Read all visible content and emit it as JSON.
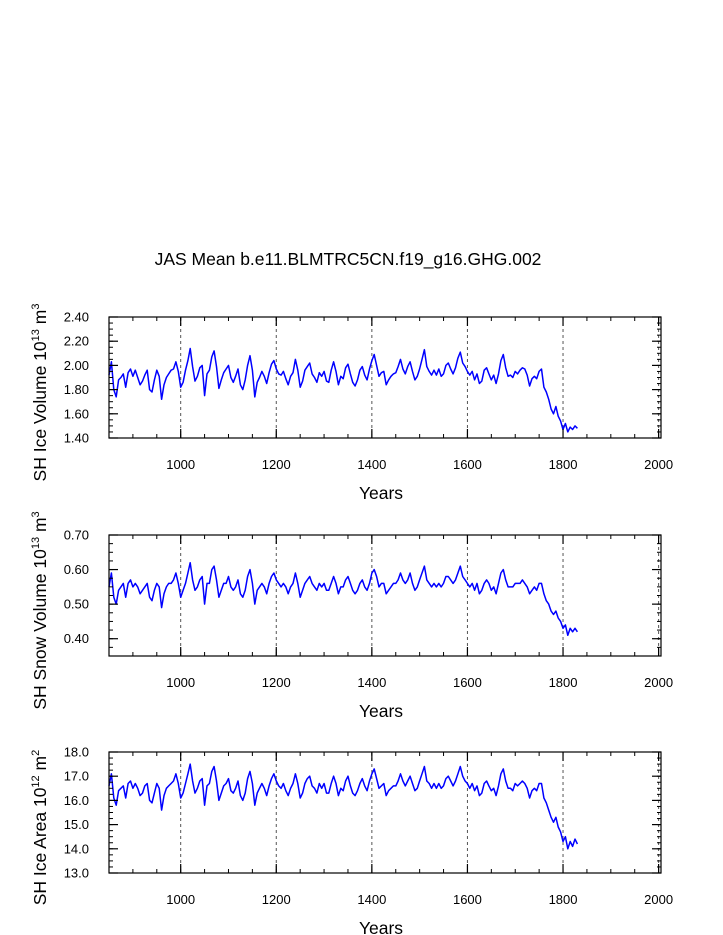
{
  "title": "JAS Mean b.e11.BLMTRC5CN.f19_g16.GHG.002",
  "chart_data": [
    {
      "type": "line",
      "id": "ice-volume",
      "ylabel": "SH Ice Volume 10",
      "ylabel_exp": "13",
      "ylabel_unit": "m",
      "ylabel_unit_exp": "3",
      "xlabel": "Years",
      "xlim": [
        850,
        2005
      ],
      "ylim": [
        1.4,
        2.4
      ],
      "xticks": [
        1000,
        1200,
        1400,
        1600,
        1800,
        2000
      ],
      "xtick_labels": [
        "1000",
        "1200",
        "1400",
        "1600",
        "1800",
        "2000"
      ],
      "yticks": [
        1.4,
        1.6,
        1.8,
        2.0,
        2.2,
        2.4
      ],
      "ytick_labels": [
        "1.40",
        "1.60",
        "1.80",
        "2.00",
        "2.20",
        "2.40"
      ],
      "grid_x": [
        1000,
        1200,
        1400,
        1600,
        1800,
        2000
      ],
      "series": [
        {
          "name": "SH Ice Volume",
          "color": "#0000ff",
          "x_start": 850,
          "x_step": 5,
          "values": [
            1.92,
            2.03,
            1.8,
            1.74,
            1.88,
            1.9,
            1.93,
            1.82,
            1.94,
            1.97,
            1.91,
            1.96,
            1.9,
            1.84,
            1.87,
            1.92,
            1.96,
            1.8,
            1.78,
            1.88,
            1.96,
            1.91,
            1.72,
            1.84,
            1.9,
            1.93,
            1.96,
            1.97,
            2.03,
            1.95,
            1.82,
            1.86,
            1.96,
            2.04,
            2.14,
            1.99,
            1.87,
            1.91,
            1.98,
            2.0,
            1.75,
            1.93,
            1.96,
            2.07,
            2.12,
            1.99,
            1.81,
            1.88,
            1.94,
            1.97,
            2.0,
            1.9,
            1.86,
            1.91,
            1.97,
            1.84,
            1.8,
            1.88,
            2.0,
            2.08,
            1.96,
            1.74,
            1.86,
            1.9,
            1.95,
            1.91,
            1.85,
            1.94,
            2.01,
            2.04,
            1.97,
            1.93,
            1.92,
            1.95,
            1.89,
            1.84,
            1.91,
            1.94,
            2.05,
            1.96,
            1.82,
            1.87,
            1.96,
            1.99,
            2.02,
            1.93,
            1.9,
            1.86,
            1.94,
            1.91,
            1.95,
            1.87,
            1.86,
            1.96,
            2.03,
            1.95,
            1.84,
            1.91,
            1.89,
            1.98,
            2.01,
            1.93,
            1.86,
            1.83,
            1.88,
            1.96,
            1.99,
            1.92,
            1.88,
            1.97,
            2.04,
            2.09,
            2.0,
            1.91,
            1.94,
            1.95,
            1.84,
            1.88,
            1.91,
            1.93,
            1.94,
            1.99,
            2.05,
            1.97,
            1.93,
            1.99,
            2.03,
            1.95,
            1.88,
            1.91,
            1.97,
            2.05,
            2.13,
            1.99,
            1.95,
            1.92,
            1.96,
            1.92,
            1.97,
            1.91,
            1.93,
            2.0,
            2.02,
            1.97,
            1.93,
            1.98,
            2.06,
            2.11,
            2.02,
            1.99,
            1.95,
            1.92,
            1.95,
            1.88,
            1.93,
            1.85,
            1.87,
            1.96,
            1.98,
            1.93,
            1.88,
            1.92,
            1.85,
            1.93,
            2.04,
            2.09,
            1.98,
            1.91,
            1.92,
            1.9,
            1.95,
            1.93,
            1.96,
            1.98,
            1.97,
            1.92,
            1.83,
            1.89,
            1.91,
            1.89,
            1.95,
            1.97,
            1.82,
            1.78,
            1.72,
            1.64,
            1.6,
            1.66,
            1.58,
            1.54,
            1.47,
            1.52,
            1.45,
            1.49,
            1.47,
            1.5,
            1.48
          ]
        }
      ]
    },
    {
      "type": "line",
      "id": "snow-volume",
      "ylabel": "SH Snow Volume 10",
      "ylabel_exp": "13",
      "ylabel_unit": "m",
      "ylabel_unit_exp": "3",
      "xlabel": "Years",
      "xlim": [
        850,
        2005
      ],
      "ylim": [
        0.35,
        0.7
      ],
      "xticks": [
        1000,
        1200,
        1400,
        1600,
        1800,
        2000
      ],
      "xtick_labels": [
        "1000",
        "1200",
        "1400",
        "1600",
        "1800",
        "2000"
      ],
      "yticks": [
        0.4,
        0.5,
        0.6,
        0.7
      ],
      "ytick_labels": [
        "0.40",
        "0.50",
        "0.60",
        "0.70"
      ],
      "grid_x": [
        1000,
        1200,
        1400,
        1600,
        1800,
        2000
      ],
      "series": [
        {
          "name": "SH Snow Volume",
          "color": "#0000ff",
          "x_start": 850,
          "x_step": 5,
          "values": [
            0.55,
            0.59,
            0.52,
            0.5,
            0.54,
            0.55,
            0.56,
            0.52,
            0.56,
            0.57,
            0.55,
            0.56,
            0.55,
            0.53,
            0.54,
            0.55,
            0.56,
            0.52,
            0.51,
            0.54,
            0.56,
            0.55,
            0.49,
            0.53,
            0.55,
            0.56,
            0.56,
            0.57,
            0.59,
            0.56,
            0.52,
            0.54,
            0.56,
            0.59,
            0.62,
            0.57,
            0.54,
            0.55,
            0.57,
            0.58,
            0.5,
            0.56,
            0.56,
            0.6,
            0.61,
            0.57,
            0.52,
            0.54,
            0.56,
            0.56,
            0.58,
            0.55,
            0.54,
            0.55,
            0.57,
            0.53,
            0.52,
            0.54,
            0.58,
            0.6,
            0.56,
            0.5,
            0.54,
            0.55,
            0.56,
            0.55,
            0.53,
            0.56,
            0.58,
            0.59,
            0.57,
            0.56,
            0.55,
            0.56,
            0.55,
            0.53,
            0.55,
            0.56,
            0.59,
            0.56,
            0.52,
            0.54,
            0.56,
            0.57,
            0.58,
            0.56,
            0.55,
            0.54,
            0.56,
            0.55,
            0.56,
            0.54,
            0.54,
            0.56,
            0.58,
            0.56,
            0.53,
            0.55,
            0.55,
            0.57,
            0.58,
            0.56,
            0.54,
            0.53,
            0.54,
            0.56,
            0.57,
            0.55,
            0.54,
            0.56,
            0.59,
            0.6,
            0.58,
            0.55,
            0.56,
            0.56,
            0.53,
            0.54,
            0.55,
            0.56,
            0.56,
            0.57,
            0.59,
            0.57,
            0.56,
            0.57,
            0.59,
            0.56,
            0.54,
            0.55,
            0.57,
            0.59,
            0.61,
            0.57,
            0.56,
            0.55,
            0.56,
            0.55,
            0.56,
            0.55,
            0.56,
            0.58,
            0.58,
            0.57,
            0.56,
            0.57,
            0.59,
            0.61,
            0.58,
            0.57,
            0.56,
            0.55,
            0.56,
            0.54,
            0.56,
            0.53,
            0.54,
            0.56,
            0.57,
            0.56,
            0.54,
            0.55,
            0.53,
            0.56,
            0.59,
            0.6,
            0.57,
            0.55,
            0.55,
            0.55,
            0.56,
            0.56,
            0.56,
            0.57,
            0.56,
            0.55,
            0.53,
            0.54,
            0.55,
            0.54,
            0.56,
            0.56,
            0.53,
            0.51,
            0.5,
            0.48,
            0.47,
            0.48,
            0.46,
            0.45,
            0.43,
            0.44,
            0.41,
            0.43,
            0.42,
            0.43,
            0.42
          ]
        }
      ]
    },
    {
      "type": "line",
      "id": "ice-area",
      "ylabel": "SH Ice Area 10",
      "ylabel_exp": "12",
      "ylabel_unit": "m",
      "ylabel_unit_exp": "2",
      "xlabel": "Years",
      "xlim": [
        850,
        2005
      ],
      "ylim": [
        13.0,
        18.0
      ],
      "xticks": [
        1000,
        1200,
        1400,
        1600,
        1800,
        2000
      ],
      "xtick_labels": [
        "1000",
        "1200",
        "1400",
        "1600",
        "1800",
        "2000"
      ],
      "yticks": [
        13.0,
        14.0,
        15.0,
        16.0,
        17.0,
        18.0
      ],
      "ytick_labels": [
        "13.0",
        "14.0",
        "15.0",
        "16.0",
        "17.0",
        "18.0"
      ],
      "grid_x": [
        1000,
        1200,
        1400,
        1600,
        1800,
        2000
      ],
      "series": [
        {
          "name": "SH Ice Area",
          "color": "#0000ff",
          "x_start": 850,
          "x_step": 5,
          "values": [
            16.6,
            17.1,
            16.1,
            15.8,
            16.4,
            16.5,
            16.6,
            16.1,
            16.7,
            16.8,
            16.5,
            16.7,
            16.5,
            16.2,
            16.3,
            16.6,
            16.7,
            16.0,
            15.9,
            16.3,
            16.7,
            16.5,
            15.6,
            16.2,
            16.5,
            16.6,
            16.7,
            16.8,
            17.1,
            16.7,
            16.1,
            16.3,
            16.7,
            17.1,
            17.5,
            16.8,
            16.3,
            16.5,
            16.8,
            16.9,
            15.8,
            16.6,
            16.7,
            17.2,
            17.4,
            16.8,
            16.0,
            16.3,
            16.6,
            16.7,
            16.9,
            16.4,
            16.3,
            16.5,
            16.8,
            16.2,
            16.0,
            16.3,
            16.9,
            17.2,
            16.7,
            15.8,
            16.3,
            16.5,
            16.7,
            16.5,
            16.2,
            16.6,
            16.9,
            17.1,
            16.8,
            16.6,
            16.5,
            16.7,
            16.4,
            16.2,
            16.5,
            16.7,
            17.1,
            16.7,
            16.1,
            16.3,
            16.7,
            16.9,
            17.0,
            16.6,
            16.5,
            16.3,
            16.7,
            16.5,
            16.7,
            16.3,
            16.3,
            16.7,
            17.0,
            16.7,
            16.2,
            16.5,
            16.4,
            16.8,
            17.0,
            16.6,
            16.3,
            16.2,
            16.4,
            16.7,
            16.9,
            16.6,
            16.4,
            16.8,
            17.1,
            17.3,
            16.9,
            16.5,
            16.6,
            16.7,
            16.2,
            16.4,
            16.5,
            16.6,
            16.6,
            16.8,
            17.1,
            16.8,
            16.6,
            16.8,
            17.0,
            16.7,
            16.4,
            16.5,
            16.8,
            17.1,
            17.4,
            16.8,
            16.7,
            16.5,
            16.7,
            16.5,
            16.7,
            16.5,
            16.6,
            16.9,
            17.0,
            16.8,
            16.6,
            16.8,
            17.1,
            17.4,
            17.0,
            16.8,
            16.7,
            16.5,
            16.7,
            16.4,
            16.6,
            16.2,
            16.3,
            16.7,
            16.8,
            16.6,
            16.4,
            16.5,
            16.2,
            16.6,
            17.1,
            17.3,
            16.8,
            16.5,
            16.5,
            16.4,
            16.7,
            16.6,
            16.7,
            16.8,
            16.7,
            16.5,
            16.1,
            16.4,
            16.5,
            16.4,
            16.7,
            16.7,
            16.1,
            15.9,
            15.6,
            15.3,
            15.1,
            15.3,
            14.9,
            14.7,
            14.3,
            14.5,
            14.0,
            14.3,
            14.1,
            14.4,
            14.2
          ]
        }
      ]
    }
  ]
}
